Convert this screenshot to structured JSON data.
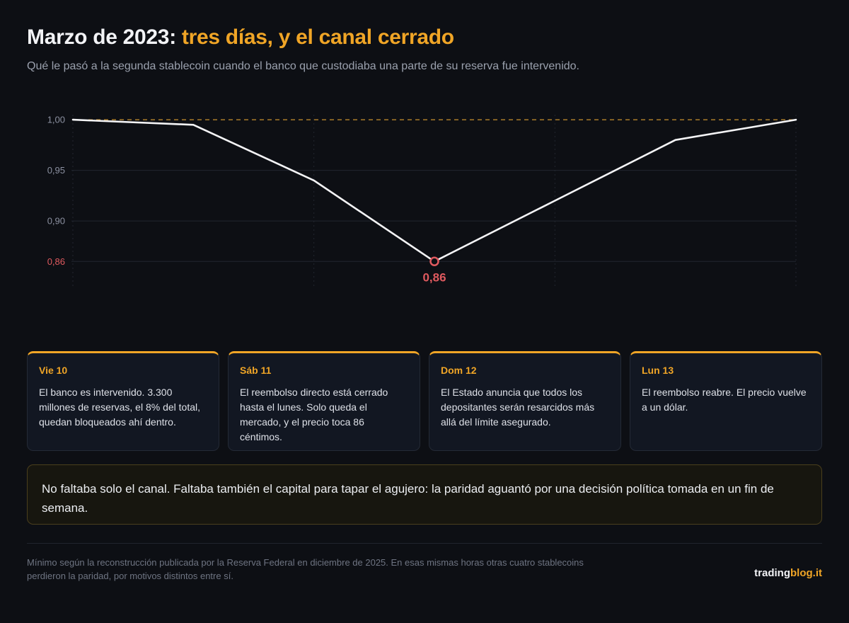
{
  "header": {
    "title_plain": "Marzo de 2023: ",
    "title_highlight": "tres días, y el canal cerrado",
    "subtitle": "Qué le pasó a la segunda stablecoin cuando el banco que custodiaba una parte de su reserva fue intervenido."
  },
  "chart_data": {
    "type": "line",
    "title": "",
    "xlabel": "",
    "ylabel": "",
    "x": [
      0,
      0.5,
      1,
      1.5,
      2,
      2.5,
      3
    ],
    "series": [
      {
        "values": [
          1.0,
          0.995,
          0.94,
          0.86,
          0.92,
          0.98,
          1.0
        ]
      }
    ],
    "ylim": [
      0.835,
      1.005
    ],
    "yticks": [
      {
        "value": 1.0,
        "label": "1,00"
      },
      {
        "value": 0.95,
        "label": "0,95"
      },
      {
        "value": 0.9,
        "label": "0,90"
      },
      {
        "value": 0.86,
        "label": "0,86"
      }
    ],
    "reference_line": {
      "value": 1.0,
      "style": "dashed"
    },
    "annotation": {
      "x": 1.5,
      "y": 0.86,
      "label": "0,86"
    },
    "vertical_grid_at": [
      0,
      1,
      2,
      3
    ],
    "grid": true,
    "colors": {
      "line": "#f4f4f6",
      "reference": "#c9922e",
      "minimum": "#e05a5f",
      "tick": "#8b90a0",
      "grid": "#22262f"
    }
  },
  "cards": [
    {
      "day": "Vie 10",
      "text": "El banco es intervenido. 3.300 millones de reservas, el 8% del total, quedan bloqueados ahí dentro."
    },
    {
      "day": "Sáb 11",
      "text": "El reembolso directo está cerrado hasta el lunes. Solo queda el mercado, y el precio toca 86 céntimos."
    },
    {
      "day": "Dom 12",
      "text": "El Estado anuncia que todos los depositantes serán resarcidos más allá del límite asegurado."
    },
    {
      "day": "Lun 13",
      "text": "El reembolso reabre. El precio vuelve a un dólar."
    }
  ],
  "note": "No faltaba solo el canal. Faltaba también el capital para tapar el agujero: la paridad aguantó por una decisión política tomada en un fin de semana.",
  "footnote": "Mínimo según la reconstrucción publicada por la Reserva Federal en diciembre de 2025. En esas mismas horas otras cuatro stablecoins perdieron la paridad, por motivos distintos entre sí.",
  "brand": {
    "part1": "trading",
    "part2": "blog.it"
  },
  "colors": {
    "accent": "#f0a526",
    "background": "#0d0f14",
    "card": "#121722"
  }
}
